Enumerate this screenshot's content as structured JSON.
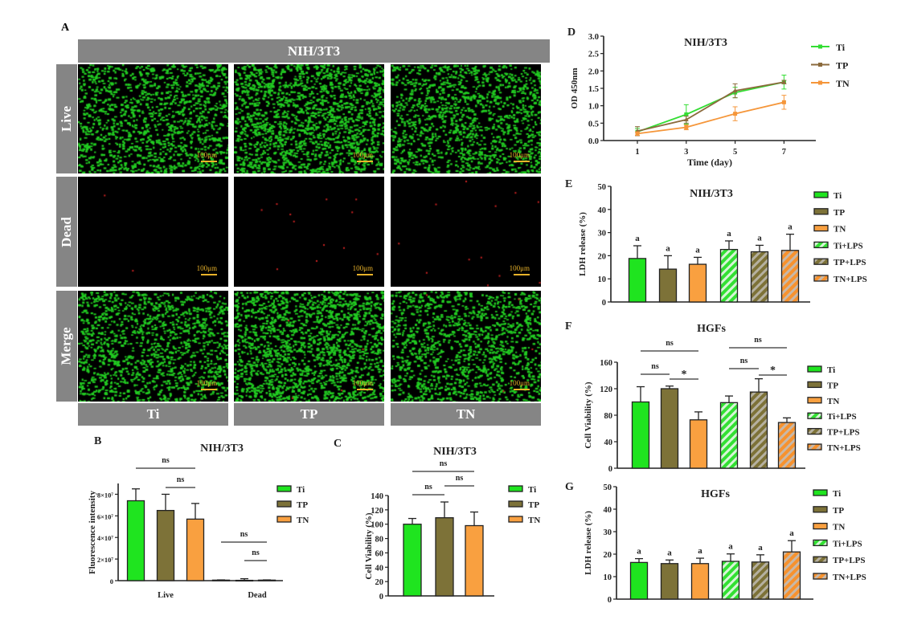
{
  "panel_a": {
    "label": "A",
    "header": "NIH/3T3",
    "rows": [
      "Live",
      "Dead",
      "Merge"
    ],
    "columns": [
      "Ti",
      "TP",
      "TN"
    ],
    "scale_bar": "100μm"
  },
  "colors": {
    "Ti": "#1fe41f",
    "TP": "#7d7238",
    "TN": "#f9a040",
    "TP_line": "#8b6a3c",
    "TN_line": "#f5963a",
    "Ti_line": "#33dd33"
  },
  "chart_data": [
    {
      "panel": "B",
      "type": "bar",
      "title": "NIH/3T3",
      "xlabel": "",
      "ylabel": "Fluorescence intensity",
      "ylim": [
        0,
        90000000
      ],
      "yticks": [
        0,
        20000000,
        40000000,
        60000000,
        80000000
      ],
      "ytick_labels": [
        "0",
        "2×10⁷",
        "4×10⁷",
        "6×10⁷",
        "8×10⁷"
      ],
      "series": [
        "Ti",
        "TP",
        "TN"
      ],
      "legend": "right",
      "groups": [
        {
          "name": "Live",
          "bars": [
            {
              "value": 74000000,
              "error": 11000000
            },
            {
              "value": 65000000,
              "error": 15000000
            },
            {
              "value": 57000000,
              "error": 14500000
            }
          ]
        },
        {
          "name": "Dead",
          "bars": [
            {
              "value": 500000,
              "error": 200000
            },
            {
              "value": 300000,
              "error": 1500000
            },
            {
              "value": 500000,
              "error": 200000
            }
          ]
        }
      ],
      "annotations": [
        {
          "label": "ns",
          "from": [
            0,
            0
          ],
          "to": [
            0,
            2
          ]
        },
        {
          "label": "ns",
          "from": [
            0,
            1
          ],
          "to": [
            0,
            2
          ]
        },
        {
          "label": "ns",
          "from": [
            1,
            0
          ],
          "to": [
            1,
            2
          ]
        },
        {
          "label": "ns",
          "from": [
            1,
            1
          ],
          "to": [
            1,
            2
          ]
        }
      ]
    },
    {
      "panel": "C",
      "type": "bar",
      "title": "NIH/3T3",
      "xlabel": "",
      "ylabel": "Cell Viability (%)",
      "ylim": [
        0,
        140
      ],
      "yticks": [
        0,
        20,
        40,
        60,
        80,
        100,
        120,
        140
      ],
      "ytick_labels": [
        "0",
        "20",
        "40",
        "60",
        "80",
        "100",
        "120",
        "140"
      ],
      "series": [
        "Ti",
        "TP",
        "TN"
      ],
      "legend": "right",
      "groups": [
        {
          "name": "",
          "bars": [
            {
              "value": 100,
              "error": 8
            },
            {
              "value": 109,
              "error": 22
            },
            {
              "value": 98,
              "error": 19
            }
          ]
        }
      ],
      "annotations": [
        {
          "label": "ns",
          "from": [
            0,
            0
          ],
          "to": [
            0,
            2
          ]
        },
        {
          "label": "ns",
          "from": [
            0,
            0
          ],
          "to": [
            0,
            1
          ]
        },
        {
          "label": "ns",
          "from": [
            0,
            1
          ],
          "to": [
            0,
            2
          ]
        }
      ]
    },
    {
      "panel": "D",
      "type": "line",
      "title": "NIH/3T3",
      "xlabel": "Time (day)",
      "ylabel": "OD 450nm",
      "ylim": [
        0,
        3
      ],
      "yticks": [
        0,
        0.5,
        1,
        1.5,
        2,
        2.5,
        3
      ],
      "ytick_labels": [
        "0.0",
        "0.5",
        "1.0",
        "1.5",
        "2.0",
        "2.5",
        "3.0"
      ],
      "x": [
        1,
        3,
        5,
        7
      ],
      "xtick_labels": [
        "1",
        "3",
        "5",
        "7"
      ],
      "legend": "right",
      "series": [
        {
          "name": "Ti",
          "values": [
            0.25,
            0.75,
            1.38,
            1.68
          ],
          "errors": [
            0.1,
            0.28,
            0.15,
            0.2
          ]
        },
        {
          "name": "TP",
          "values": [
            0.27,
            0.6,
            1.43,
            1.68
          ],
          "errors": [
            0.13,
            0.1,
            0.2,
            0.05
          ]
        },
        {
          "name": "TN",
          "values": [
            0.2,
            0.38,
            0.77,
            1.1
          ],
          "errors": [
            0.05,
            0.07,
            0.2,
            0.2
          ]
        }
      ]
    },
    {
      "panel": "E",
      "type": "bar",
      "title": "NIH/3T3",
      "xlabel": "",
      "ylabel": "LDH release (%)",
      "ylim": [
        0,
        50
      ],
      "yticks": [
        0,
        10,
        20,
        30,
        40,
        50
      ],
      "ytick_labels": [
        "0",
        "10",
        "20",
        "30",
        "40",
        "50"
      ],
      "series": [
        "Ti",
        "TP",
        "TN",
        "Ti+LPS",
        "TP+LPS",
        "TN+LPS"
      ],
      "legend": "right",
      "groups": [
        {
          "name": "",
          "bars": [
            {
              "value": 18.8,
              "error": 5.5,
              "letter": "a"
            },
            {
              "value": 14.2,
              "error": 5.8,
              "letter": "a"
            },
            {
              "value": 16.3,
              "error": 3.0,
              "letter": "a"
            },
            {
              "value": 22.7,
              "error": 3.7,
              "letter": "a"
            },
            {
              "value": 21.7,
              "error": 2.8,
              "letter": "a"
            },
            {
              "value": 22.3,
              "error": 7.0,
              "letter": "a"
            }
          ]
        }
      ],
      "annotations": []
    },
    {
      "panel": "F",
      "type": "bar",
      "title": "HGFs",
      "xlabel": "",
      "ylabel": "Cell Viability (%)",
      "ylim": [
        0,
        160
      ],
      "yticks": [
        0,
        40,
        80,
        120,
        160
      ],
      "ytick_labels": [
        "0",
        "40",
        "80",
        "120",
        "160"
      ],
      "series": [
        "Ti",
        "TP",
        "TN",
        "Ti+LPS",
        "TP+LPS",
        "TN+LPS"
      ],
      "legend": "right",
      "groups": [
        {
          "name": "",
          "bars": [
            {
              "value": 100,
              "error": 23
            },
            {
              "value": 120,
              "error": 4
            },
            {
              "value": 73,
              "error": 12
            },
            {
              "value": 99,
              "error": 10
            },
            {
              "value": 115,
              "error": 20
            },
            {
              "value": 69,
              "error": 7
            }
          ]
        }
      ],
      "annotations": [
        {
          "label": "ns",
          "from": [
            0,
            0
          ],
          "to": [
            0,
            2
          ]
        },
        {
          "label": "ns",
          "from": [
            0,
            0
          ],
          "to": [
            0,
            1
          ]
        },
        {
          "label": "*",
          "from": [
            0,
            1
          ],
          "to": [
            0,
            2
          ]
        },
        {
          "label": "ns",
          "from": [
            0,
            3
          ],
          "to": [
            0,
            5
          ]
        },
        {
          "label": "ns",
          "from": [
            0,
            3
          ],
          "to": [
            0,
            4
          ]
        },
        {
          "label": "*",
          "from": [
            0,
            4
          ],
          "to": [
            0,
            5
          ]
        }
      ]
    },
    {
      "panel": "G",
      "type": "bar",
      "title": "HGFs",
      "xlabel": "",
      "ylabel": "LDH release (%)",
      "ylim": [
        0,
        50
      ],
      "yticks": [
        0,
        10,
        20,
        30,
        40,
        50
      ],
      "ytick_labels": [
        "0",
        "10",
        "20",
        "30",
        "40",
        "50"
      ],
      "series": [
        "Ti",
        "TP",
        "TN",
        "Ti+LPS",
        "TP+LPS",
        "TN+LPS"
      ],
      "legend": "right",
      "groups": [
        {
          "name": "",
          "bars": [
            {
              "value": 16.3,
              "error": 1.7,
              "letter": "a"
            },
            {
              "value": 15.8,
              "error": 1.6,
              "letter": "a"
            },
            {
              "value": 15.8,
              "error": 2.4,
              "letter": "a"
            },
            {
              "value": 16.8,
              "error": 3.3,
              "letter": "a"
            },
            {
              "value": 16.5,
              "error": 3.2,
              "letter": "a"
            },
            {
              "value": 21.0,
              "error": 5.0,
              "letter": "a"
            }
          ]
        }
      ],
      "annotations": []
    }
  ]
}
